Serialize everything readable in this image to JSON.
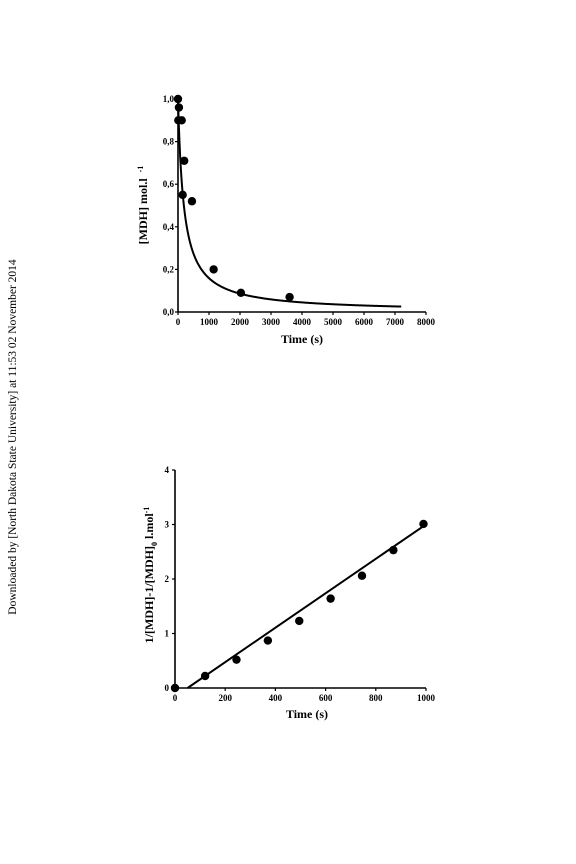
{
  "watermark": "Downloaded by [North Dakota State University] at 11:53 02 November 2014",
  "chart_data": [
    {
      "type": "scatter",
      "xlabel": "Time (s)",
      "ylabel": "[MDH] mol.l",
      "ylabel_sup": "-1",
      "xlim": [
        0,
        8000
      ],
      "ylim": [
        0,
        1.0
      ],
      "xticks": [
        "0",
        "1000",
        "2000",
        "3000",
        "4000",
        "5000",
        "6000",
        "7000",
        "8000"
      ],
      "yticks": [
        "0,0",
        "0,2",
        "0,4",
        "0,6",
        "0,8",
        "1,0"
      ],
      "grid": false,
      "series": [
        {
          "points": [
            {
              "x": 0,
              "y": 1.0
            },
            {
              "x": 30,
              "y": 0.96
            },
            {
              "x": 10,
              "y": 0.9
            },
            {
              "x": 120,
              "y": 0.9
            },
            {
              "x": 200,
              "y": 0.71
            },
            {
              "x": 150,
              "y": 0.55
            },
            {
              "x": 450,
              "y": 0.52
            },
            {
              "x": 1150,
              "y": 0.2
            },
            {
              "x": 2030,
              "y": 0.09
            },
            {
              "x": 3600,
              "y": 0.07
            }
          ],
          "fit": {
            "model": "second-order decay",
            "y0": 1.0,
            "k": 0.0053,
            "x_end": 7200
          }
        }
      ]
    },
    {
      "type": "scatter",
      "xlabel": "Time (s)",
      "ylabel_parts": [
        "1/[MDH]-1/[MDH]",
        "0",
        " l.mol",
        "-1"
      ],
      "xlim": [
        0,
        1000
      ],
      "ylim": [
        0,
        4
      ],
      "xticks": [
        "0",
        "200",
        "400",
        "600",
        "800",
        "1000"
      ],
      "yticks": [
        "0",
        "1",
        "2",
        "3",
        "4"
      ],
      "grid": false,
      "series": [
        {
          "points": [
            {
              "x": 0,
              "y": 0.0
            },
            {
              "x": 120,
              "y": 0.22
            },
            {
              "x": 245,
              "y": 0.52
            },
            {
              "x": 370,
              "y": 0.87
            },
            {
              "x": 495,
              "y": 1.23
            },
            {
              "x": 620,
              "y": 1.64
            },
            {
              "x": 745,
              "y": 2.06
            },
            {
              "x": 870,
              "y": 2.53
            },
            {
              "x": 990,
              "y": 3.01
            }
          ],
          "fit": {
            "model": "linear",
            "x_start": 50,
            "x_end": 1000,
            "slope": 0.00316,
            "intercept": -0.158
          }
        }
      ]
    }
  ]
}
